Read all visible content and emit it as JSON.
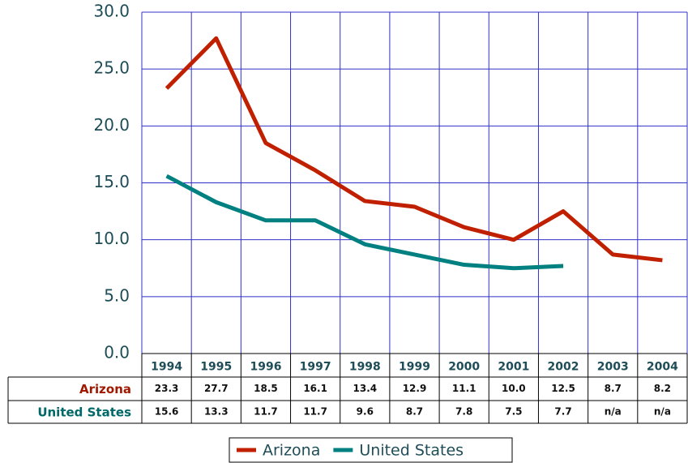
{
  "chart_data": {
    "type": "line",
    "categories": [
      "1994",
      "1995",
      "1996",
      "1997",
      "1998",
      "1999",
      "2000",
      "2001",
      "2002",
      "2003",
      "2004"
    ],
    "series": [
      {
        "name": "Arizona",
        "color": "#c02000",
        "values": [
          23.3,
          27.7,
          18.5,
          16.1,
          13.4,
          12.9,
          11.1,
          10.0,
          12.5,
          8.7,
          8.2
        ],
        "value_labels": [
          "23.3",
          "27.7",
          "18.5",
          "16.1",
          "13.4",
          "12.9",
          "11.1",
          "10.0",
          "12.5",
          "8.7",
          "8.2"
        ]
      },
      {
        "name": "United States",
        "color": "#008080",
        "values": [
          15.6,
          13.3,
          11.7,
          11.7,
          9.6,
          8.7,
          7.8,
          7.5,
          7.7,
          null,
          null
        ],
        "value_labels": [
          "15.6",
          "13.3",
          "11.7",
          "11.7",
          "9.6",
          "8.7",
          "7.8",
          "7.5",
          "7.7",
          "n/a",
          "n/a"
        ]
      }
    ],
    "ylim": [
      0,
      30
    ],
    "yticks": [
      {
        "value": 0,
        "label": "0.0"
      },
      {
        "value": 5,
        "label": "5.0"
      },
      {
        "value": 10,
        "label": "10.0"
      },
      {
        "value": 15,
        "label": "15.0"
      },
      {
        "value": 20,
        "label": "20.0"
      },
      {
        "value": 25,
        "label": "25.0"
      },
      {
        "value": 30,
        "label": "30.0"
      }
    ],
    "grid": true
  }
}
